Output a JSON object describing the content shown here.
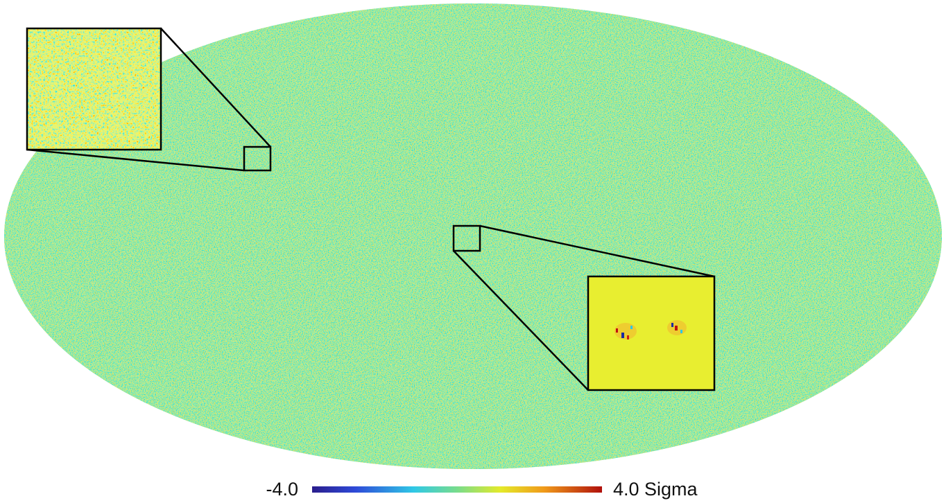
{
  "colorbar": {
    "min_label": "-4.0",
    "max_label": "4.0 Sigma"
  }
}
